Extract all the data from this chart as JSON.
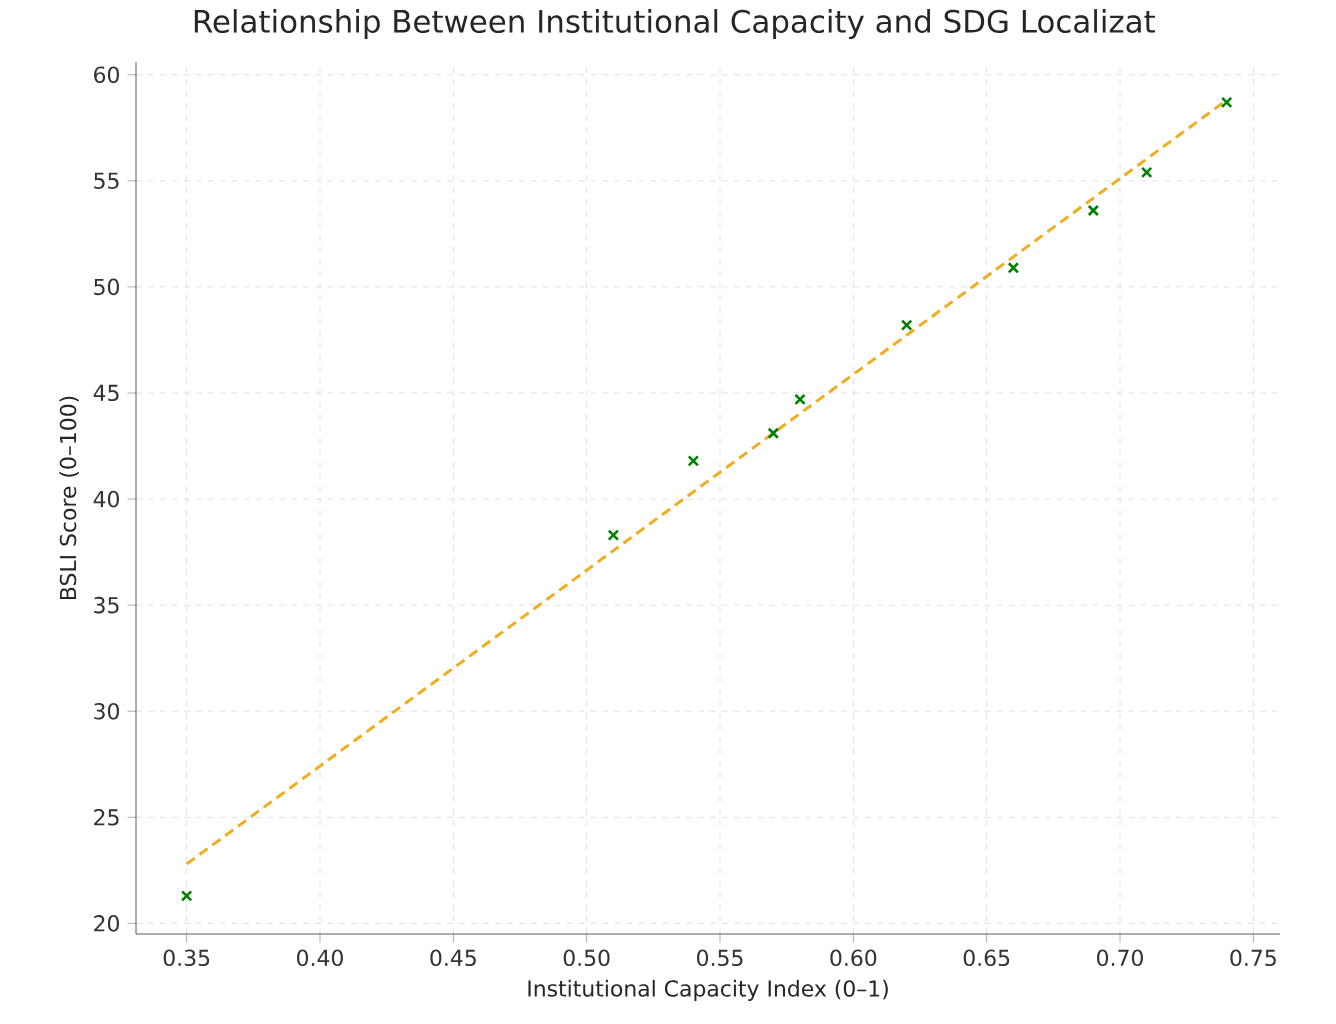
{
  "chart_data": {
    "type": "scatter",
    "title": "Relationship Between Institutional Capacity and SDG Localizat",
    "xlabel": "Institutional Capacity Index (0–1)",
    "ylabel": "BSLI Score (0–100)",
    "series": [
      {
        "color": "#008000",
        "marker": "cross",
        "x": [
          0.35,
          0.51,
          0.54,
          0.57,
          0.58,
          0.62,
          0.66,
          0.69,
          0.71,
          0.74
        ],
        "values": [
          21.3,
          38.3,
          41.8,
          43.1,
          44.7,
          48.2,
          50.9,
          53.6,
          55.4,
          58.7
        ]
      },
      {
        "type": "line",
        "color": "#f0ad1f",
        "line_style": "dashed",
        "x": [
          0.35,
          0.74
        ],
        "values": [
          22.8,
          58.8
        ]
      }
    ],
    "xlim": [
      0.331,
      0.76
    ],
    "ylim": [
      19.5,
      60.6
    ],
    "xticks": [
      {
        "value": 0.35,
        "label": "0.35"
      },
      {
        "value": 0.4,
        "label": "0.40"
      },
      {
        "value": 0.45,
        "label": "0.45"
      },
      {
        "value": 0.5,
        "label": "0.50"
      },
      {
        "value": 0.55,
        "label": "0.55"
      },
      {
        "value": 0.6,
        "label": "0.60"
      },
      {
        "value": 0.65,
        "label": "0.65"
      },
      {
        "value": 0.7,
        "label": "0.70"
      },
      {
        "value": 0.75,
        "label": "0.75"
      }
    ],
    "yticks": [
      20,
      25,
      30,
      35,
      40,
      45,
      50,
      55,
      60
    ],
    "grid": true
  }
}
